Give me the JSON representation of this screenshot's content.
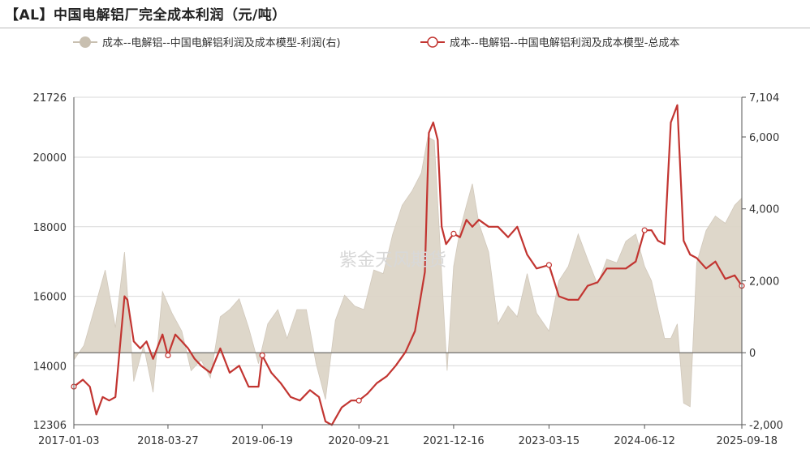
{
  "title": "【AL】中国电解铝厂完全成本利润（元/吨）",
  "watermark": "紫金天风期货",
  "legend": [
    {
      "label": "成本--电解铝--中国电解铝利润及成本模型-利润(右)",
      "color": "#c8bfb0"
    },
    {
      "label": "成本--电解铝--中国电解铝利润及成本模型-总成本",
      "color": "#c23531"
    }
  ],
  "chart_data": {
    "type": "line",
    "x_tick_labels": [
      "2017-01-03",
      "2018-03-27",
      "2019-06-19",
      "2020-09-21",
      "2021-12-16",
      "2023-03-15",
      "2024-06-12",
      "2025-09-18"
    ],
    "x_range": [
      "2017-01-03",
      "2025-09-18"
    ],
    "ylim_left": [
      12306,
      21726
    ],
    "yticks_left": [
      "12306",
      "14000",
      "16000",
      "18000",
      "20000",
      "21726"
    ],
    "ylim_right": [
      -2000,
      7104
    ],
    "yticks_right": [
      "-2,000",
      "0",
      "2,000",
      "4,000",
      "6,000",
      "7,104"
    ],
    "series": [
      {
        "name": "成本--电解铝--中国电解铝利润及成本模型-利润(右)",
        "type": "area",
        "axis": "right",
        "x": [
          "2017-01-03",
          "2017-02-20",
          "2017-04-10",
          "2017-06-01",
          "2017-07-20",
          "2017-09-01",
          "2017-10-15",
          "2017-12-01",
          "2018-01-15",
          "2018-03-01",
          "2018-04-15",
          "2018-06-01",
          "2018-07-15",
          "2018-09-01",
          "2018-10-15",
          "2018-12-01",
          "2019-01-15",
          "2019-03-01",
          "2019-04-15",
          "2019-06-01",
          "2019-07-15",
          "2019-09-01",
          "2019-10-15",
          "2019-12-01",
          "2020-01-15",
          "2020-03-01",
          "2020-04-15",
          "2020-06-01",
          "2020-07-15",
          "2020-09-01",
          "2020-10-15",
          "2020-12-01",
          "2021-01-15",
          "2021-03-01",
          "2021-04-15",
          "2021-06-01",
          "2021-07-15",
          "2021-08-15",
          "2021-09-15",
          "2021-10-15",
          "2021-11-15",
          "2021-12-16",
          "2022-01-15",
          "2022-02-15",
          "2022-03-15",
          "2022-04-15",
          "2022-06-01",
          "2022-07-15",
          "2022-09-01",
          "2022-10-15",
          "2022-12-01",
          "2023-01-15",
          "2023-03-15",
          "2023-05-01",
          "2023-06-15",
          "2023-08-01",
          "2023-09-15",
          "2023-11-01",
          "2023-12-15",
          "2024-02-01",
          "2024-03-15",
          "2024-05-01",
          "2024-06-12",
          "2024-07-15",
          "2024-08-15",
          "2024-09-15",
          "2024-10-15",
          "2024-11-15",
          "2024-12-15",
          "2025-01-15",
          "2025-02-15",
          "2025-04-01",
          "2025-05-15",
          "2025-07-01",
          "2025-08-15",
          "2025-09-18"
        ],
        "values": [
          -200,
          200,
          1200,
          2300,
          700,
          2800,
          -800,
          200,
          -1100,
          1700,
          1100,
          600,
          -500,
          -200,
          -700,
          1000,
          1200,
          1500,
          700,
          -300,
          800,
          1200,
          400,
          1200,
          1200,
          -300,
          -1300,
          900,
          1600,
          1300,
          1200,
          2300,
          2200,
          3300,
          4100,
          4500,
          5000,
          6000,
          5900,
          2700,
          -500,
          2400,
          3400,
          4100,
          4700,
          3600,
          2800,
          800,
          1300,
          1000,
          2200,
          1100,
          600,
          2000,
          2400,
          3300,
          2600,
          1900,
          2600,
          2500,
          3100,
          3300,
          2400,
          2000,
          1200,
          400,
          400,
          800,
          -1400,
          -1500,
          2500,
          3400,
          3800,
          3600,
          4100,
          4300
        ]
      },
      {
        "name": "成本--电解铝--中国电解铝利润及成本模型-总成本",
        "type": "line",
        "axis": "left",
        "x": [
          "2017-01-03",
          "2017-02-15",
          "2017-03-20",
          "2017-04-20",
          "2017-05-20",
          "2017-06-20",
          "2017-07-20",
          "2017-09-01",
          "2017-09-15",
          "2017-10-15",
          "2017-11-15",
          "2017-12-15",
          "2018-01-15",
          "2018-03-01",
          "2018-03-27",
          "2018-05-01",
          "2018-06-01",
          "2018-07-01",
          "2018-08-01",
          "2018-09-01",
          "2018-10-15",
          "2018-12-01",
          "2019-01-15",
          "2019-03-01",
          "2019-04-15",
          "2019-06-01",
          "2019-06-19",
          "2019-08-01",
          "2019-09-15",
          "2019-11-01",
          "2019-12-15",
          "2020-02-01",
          "2020-03-15",
          "2020-04-15",
          "2020-05-15",
          "2020-07-01",
          "2020-08-15",
          "2020-09-21",
          "2020-11-01",
          "2020-12-15",
          "2021-02-01",
          "2021-03-15",
          "2021-05-01",
          "2021-06-15",
          "2021-08-01",
          "2021-08-20",
          "2021-09-10",
          "2021-10-01",
          "2021-10-20",
          "2021-11-10",
          "2021-12-16",
          "2022-01-15",
          "2022-02-15",
          "2022-03-15",
          "2022-04-15",
          "2022-06-01",
          "2022-07-15",
          "2022-09-01",
          "2022-10-15",
          "2022-12-01",
          "2023-01-15",
          "2023-03-15",
          "2023-05-01",
          "2023-06-15",
          "2023-08-01",
          "2023-09-15",
          "2023-11-01",
          "2023-12-15",
          "2024-02-01",
          "2024-03-15",
          "2024-05-01",
          "2024-06-12",
          "2024-07-15",
          "2024-08-15",
          "2024-09-15",
          "2024-10-15",
          "2024-11-15",
          "2024-12-15",
          "2025-01-15",
          "2025-02-15",
          "2025-04-01",
          "2025-05-15",
          "2025-07-01",
          "2025-08-15",
          "2025-09-18"
        ],
        "values": [
          13400,
          13600,
          13400,
          12600,
          13100,
          13000,
          13100,
          16000,
          15900,
          14700,
          14500,
          14700,
          14200,
          14900,
          14300,
          14900,
          14700,
          14500,
          14200,
          14000,
          13800,
          14500,
          13800,
          14000,
          13400,
          13400,
          14300,
          13800,
          13500,
          13100,
          13000,
          13300,
          13100,
          12400,
          12300,
          12800,
          13000,
          13000,
          13200,
          13500,
          13700,
          14000,
          14400,
          15000,
          16700,
          20700,
          21000,
          20500,
          18000,
          17500,
          17800,
          17700,
          18200,
          18000,
          18200,
          18000,
          18000,
          17700,
          18000,
          17200,
          16800,
          16900,
          16000,
          15900,
          15900,
          16300,
          16400,
          16800,
          16800,
          16800,
          17000,
          17900,
          17900,
          17600,
          17500,
          21000,
          21500,
          17600,
          17200,
          17100,
          16800,
          17000,
          16500,
          16600,
          16300
        ]
      }
    ]
  }
}
